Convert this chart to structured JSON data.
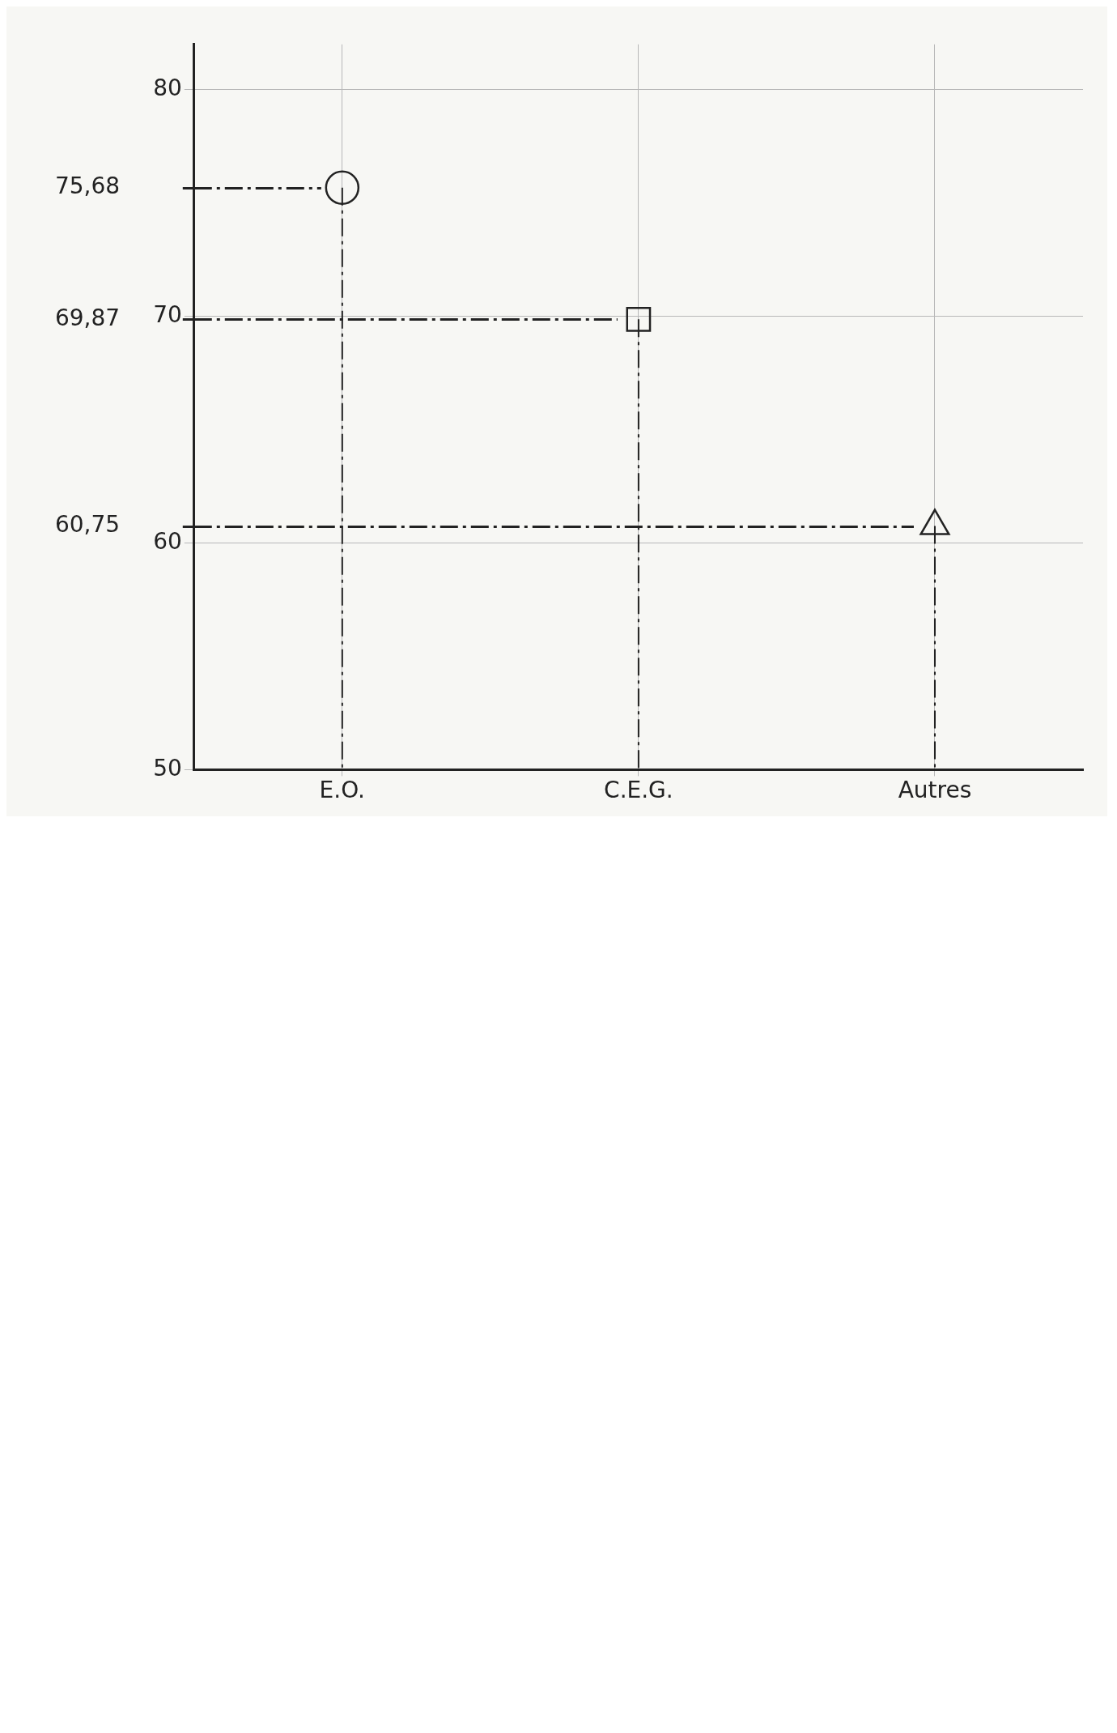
{
  "chart_data": {
    "type": "scatter",
    "categories": [
      "E.O.",
      "C.E.G.",
      "Autres"
    ],
    "series": [
      {
        "color": "#222222",
        "marker": "circle",
        "values": [
          75.68,
          null,
          null
        ]
      },
      {
        "color": "#222222",
        "marker": "square",
        "values": [
          null,
          69.87,
          null
        ]
      },
      {
        "color": "#222222",
        "marker": "triangle",
        "values": [
          null,
          null,
          60.75
        ]
      }
    ],
    "ylim": [
      50,
      82
    ],
    "yticks": [
      50,
      60,
      70,
      80
    ],
    "y2lim": [
      50,
      82
    ],
    "y2ticks": [
      {
        "value": 75.68,
        "label": "75,68"
      },
      {
        "value": 69.87,
        "label": "69,87"
      },
      {
        "value": 60.75,
        "label": "60,75"
      }
    ],
    "ref_lines": [
      {
        "axis": "y2",
        "value": 75.68
      },
      {
        "axis": "y2",
        "value": 69.87
      },
      {
        "axis": "y2",
        "value": 60.75
      }
    ],
    "grid": true,
    "line_style": "dashed"
  }
}
